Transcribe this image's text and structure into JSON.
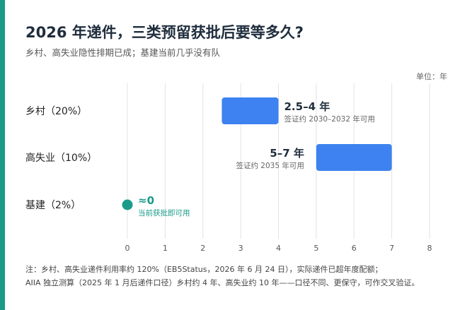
{
  "title": "2026 年递件，三类预留获批后要等多久?",
  "subtitle": "乡村、高失业隐性排期已成；基建当前几乎没有队",
  "unit_label": "单位：年",
  "colors": {
    "accent": "#1a9b8a",
    "bar": "#3d82f0",
    "point": "#1a9b8a",
    "grid": "#e3e3e3",
    "title": "#1f2d3d"
  },
  "chart_data": {
    "type": "bar",
    "orientation": "horizontal-range",
    "xlim": [
      0,
      8
    ],
    "x_ticks": [
      "0",
      "1",
      "2",
      "3",
      "4",
      "5",
      "6",
      "7",
      "8"
    ],
    "grid": true,
    "categories": [
      "乡村（20%）",
      "高失业（10%）",
      "基建（2%）"
    ],
    "ranges": [
      {
        "category": "乡村（20%）",
        "start": 2.5,
        "end": 4,
        "label": "2.5–4 年",
        "sublabel": "签证约 2030–2032 年可用"
      },
      {
        "category": "高失业（10%）",
        "start": 5,
        "end": 7,
        "label": "5–7 年",
        "sublabel": "签证约 2035 年可用"
      },
      {
        "category": "基建（2%）",
        "start": 0,
        "end": 0,
        "label": "≈0",
        "sublabel": "当前获批即可用"
      }
    ]
  },
  "notes": [
    "注：乡村、高失业递件利用率约 120%（EB5Status，2026 年 6 月 24 日），实际递件已超年度配额；",
    "AIIA 独立测算（2025 年 1 月后递件口径）乡村约 4 年、高失业约 10 年——口径不同、更保守，可作交叉验证。"
  ]
}
